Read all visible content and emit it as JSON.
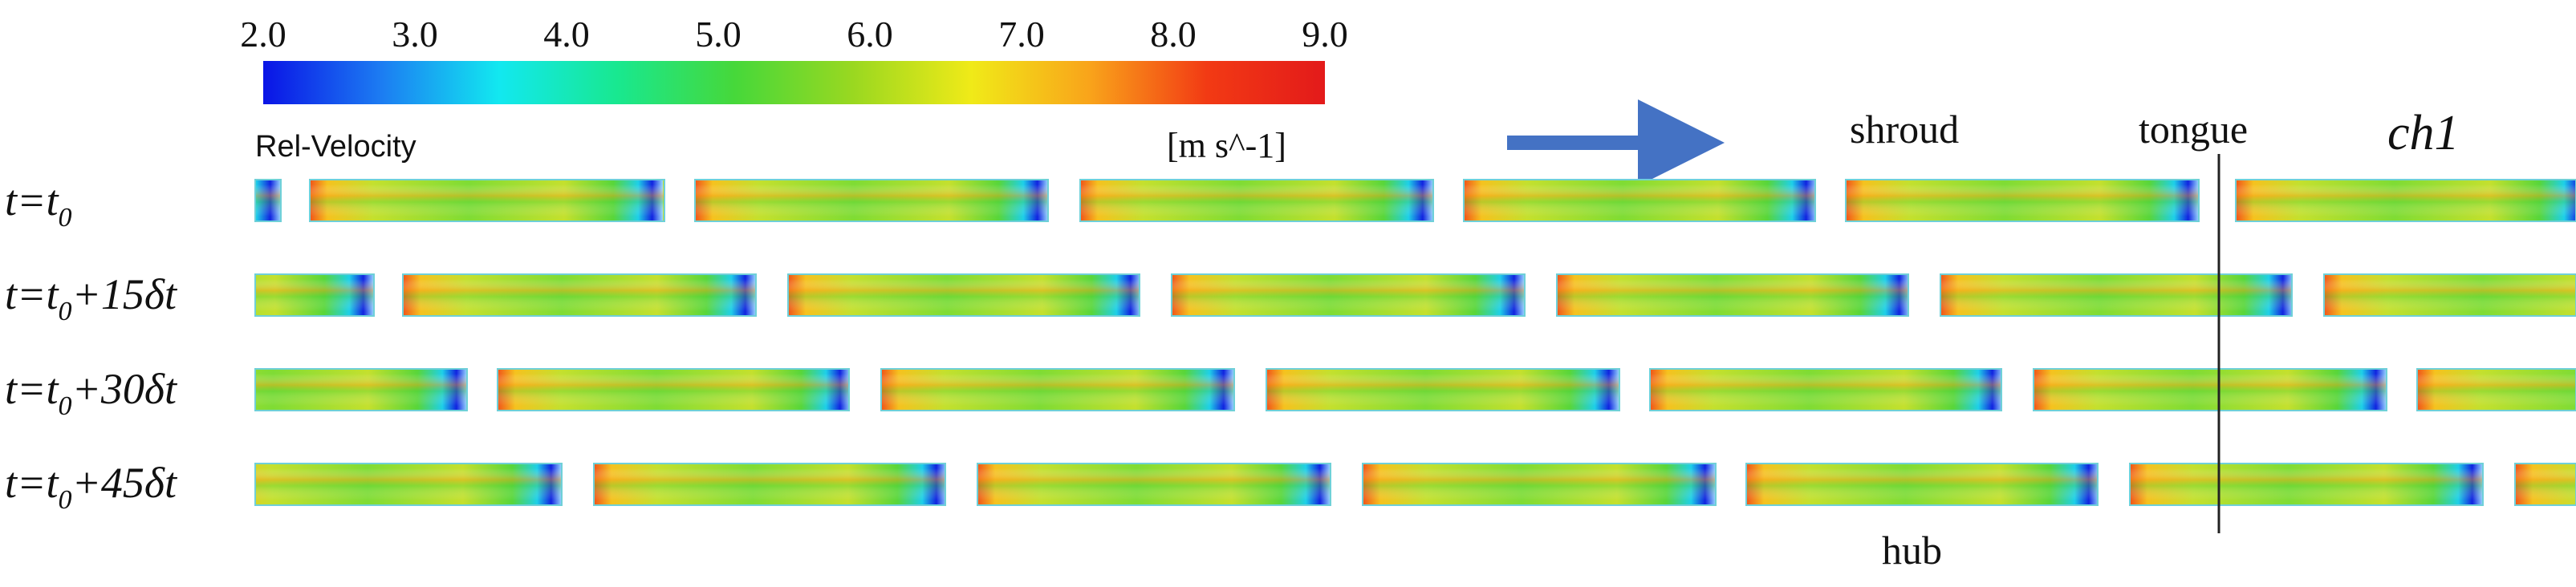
{
  "colorbar": {
    "ticks": [
      "2.0",
      "3.0",
      "4.0",
      "5.0",
      "6.0",
      "7.0",
      "8.0",
      "9.0"
    ],
    "variable_label": "Rel-Velocity",
    "unit_label": "[m s^-1]",
    "colors": [
      "#0a14e6",
      "#1c7cf2",
      "#12e8f0",
      "#18e890",
      "#46d83a",
      "#9ad820",
      "#f0ea18",
      "#f9a41a",
      "#f23a14",
      "#e31a1a"
    ]
  },
  "annotations": {
    "shroud": "shroud",
    "tongue": "tongue",
    "channel": "ch1",
    "hub": "hub",
    "arrow_color": "#4472c4"
  },
  "rows": [
    {
      "label_main": "t=t",
      "label_sub": "0",
      "label_rest": ""
    },
    {
      "label_main": "t=t",
      "label_sub": "0",
      "label_rest": "+15δt"
    },
    {
      "label_main": "t=t",
      "label_sub": "0",
      "label_rest": "+30δt"
    },
    {
      "label_main": "t=t",
      "label_sub": "0",
      "label_rest": "+45δt"
    }
  ],
  "field_colors": {
    "high": "#f0541a",
    "warm": "#f5c21f",
    "mid": "#c4e02e",
    "green": "#58d63a",
    "cyan": "#1ed0e8",
    "low": "#1024e0",
    "outline": "#6fd0d8"
  }
}
